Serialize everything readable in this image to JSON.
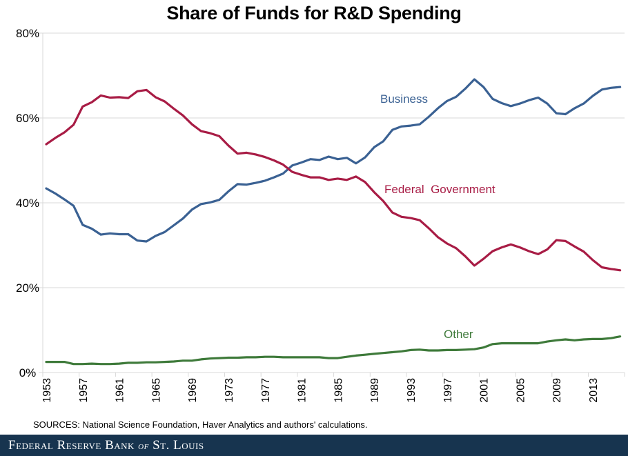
{
  "chart_data": {
    "type": "line",
    "title": "Share of Funds for R&D Spending",
    "xlabel": "",
    "ylabel": "",
    "ylim": [
      0,
      80
    ],
    "yticks": [
      "0%",
      "20%",
      "40%",
      "60%",
      "80%"
    ],
    "ytick_values": [
      0,
      20,
      40,
      60,
      80
    ],
    "xticks": [
      "1953",
      "1957",
      "1961",
      "1965",
      "1969",
      "1973",
      "1977",
      "1981",
      "1985",
      "1989",
      "1993",
      "1997",
      "2001",
      "2005",
      "2009",
      "2013"
    ],
    "x_start": 1953,
    "x_end": 2016,
    "grid": "horizontal",
    "legend": "inline labels",
    "series": [
      {
        "name": "Business",
        "color": "#3a6193",
        "label": "Business",
        "values": [
          43.4,
          42.2,
          40.8,
          39.3,
          34.8,
          33.9,
          32.5,
          32.8,
          32.6,
          32.6,
          31.1,
          30.9,
          32.2,
          33.1,
          34.7,
          36.3,
          38.4,
          39.7,
          40.1,
          40.7,
          42.7,
          44.4,
          44.3,
          44.7,
          45.2,
          46.0,
          46.9,
          48.8,
          49.5,
          50.3,
          50.1,
          50.9,
          50.3,
          50.6,
          49.3,
          50.7,
          53.1,
          54.5,
          57.2,
          58.0,
          58.2,
          58.5,
          60.3,
          62.3,
          64.0,
          65.0,
          66.9,
          69.1,
          67.3,
          64.5,
          63.5,
          62.8,
          63.4,
          64.2,
          64.8,
          63.4,
          61.1,
          60.9,
          62.3,
          63.4,
          65.2,
          66.7,
          67.1,
          67.3
        ]
      },
      {
        "name": "Federal Government",
        "color": "#a81c45",
        "label": "Federal  Government",
        "values": [
          53.8,
          55.3,
          56.6,
          58.4,
          62.7,
          63.7,
          65.3,
          64.8,
          64.9,
          64.7,
          66.3,
          66.6,
          64.9,
          63.9,
          62.2,
          60.6,
          58.5,
          56.9,
          56.4,
          55.7,
          53.5,
          51.6,
          51.8,
          51.4,
          50.8,
          50.0,
          49.0,
          47.3,
          46.6,
          46.0,
          46.0,
          45.4,
          45.7,
          45.4,
          46.2,
          44.9,
          42.5,
          40.4,
          37.7,
          36.7,
          36.4,
          35.9,
          34.0,
          31.9,
          30.4,
          29.3,
          27.4,
          25.2,
          26.8,
          28.6,
          29.5,
          30.2,
          29.5,
          28.6,
          27.9,
          29.0,
          31.2,
          31.0,
          29.7,
          28.5,
          26.5,
          24.8,
          24.4,
          24.1
        ]
      },
      {
        "name": "Other",
        "color": "#3e7a3a",
        "label": "Other",
        "values": [
          2.5,
          2.5,
          2.5,
          2.0,
          2.0,
          2.1,
          2.0,
          2.0,
          2.1,
          2.3,
          2.3,
          2.4,
          2.4,
          2.5,
          2.6,
          2.8,
          2.8,
          3.1,
          3.3,
          3.4,
          3.5,
          3.5,
          3.6,
          3.6,
          3.7,
          3.7,
          3.6,
          3.6,
          3.6,
          3.6,
          3.6,
          3.4,
          3.4,
          3.7,
          4.0,
          4.2,
          4.4,
          4.6,
          4.8,
          5.0,
          5.3,
          5.4,
          5.2,
          5.2,
          5.3,
          5.3,
          5.4,
          5.5,
          5.9,
          6.7,
          6.9,
          6.9,
          6.9,
          6.9,
          6.9,
          7.3,
          7.6,
          7.8,
          7.6,
          7.8,
          7.9,
          7.9,
          8.1,
          8.5
        ]
      }
    ]
  },
  "sources": "SOURCES: National Science Foundation,  Haver Analytics and authors' calculations.",
  "footer": {
    "brand_pre": "Federal Reserve Bank ",
    "brand_of": "of",
    "brand_post": " St. Louis",
    "background": "#17344f"
  }
}
